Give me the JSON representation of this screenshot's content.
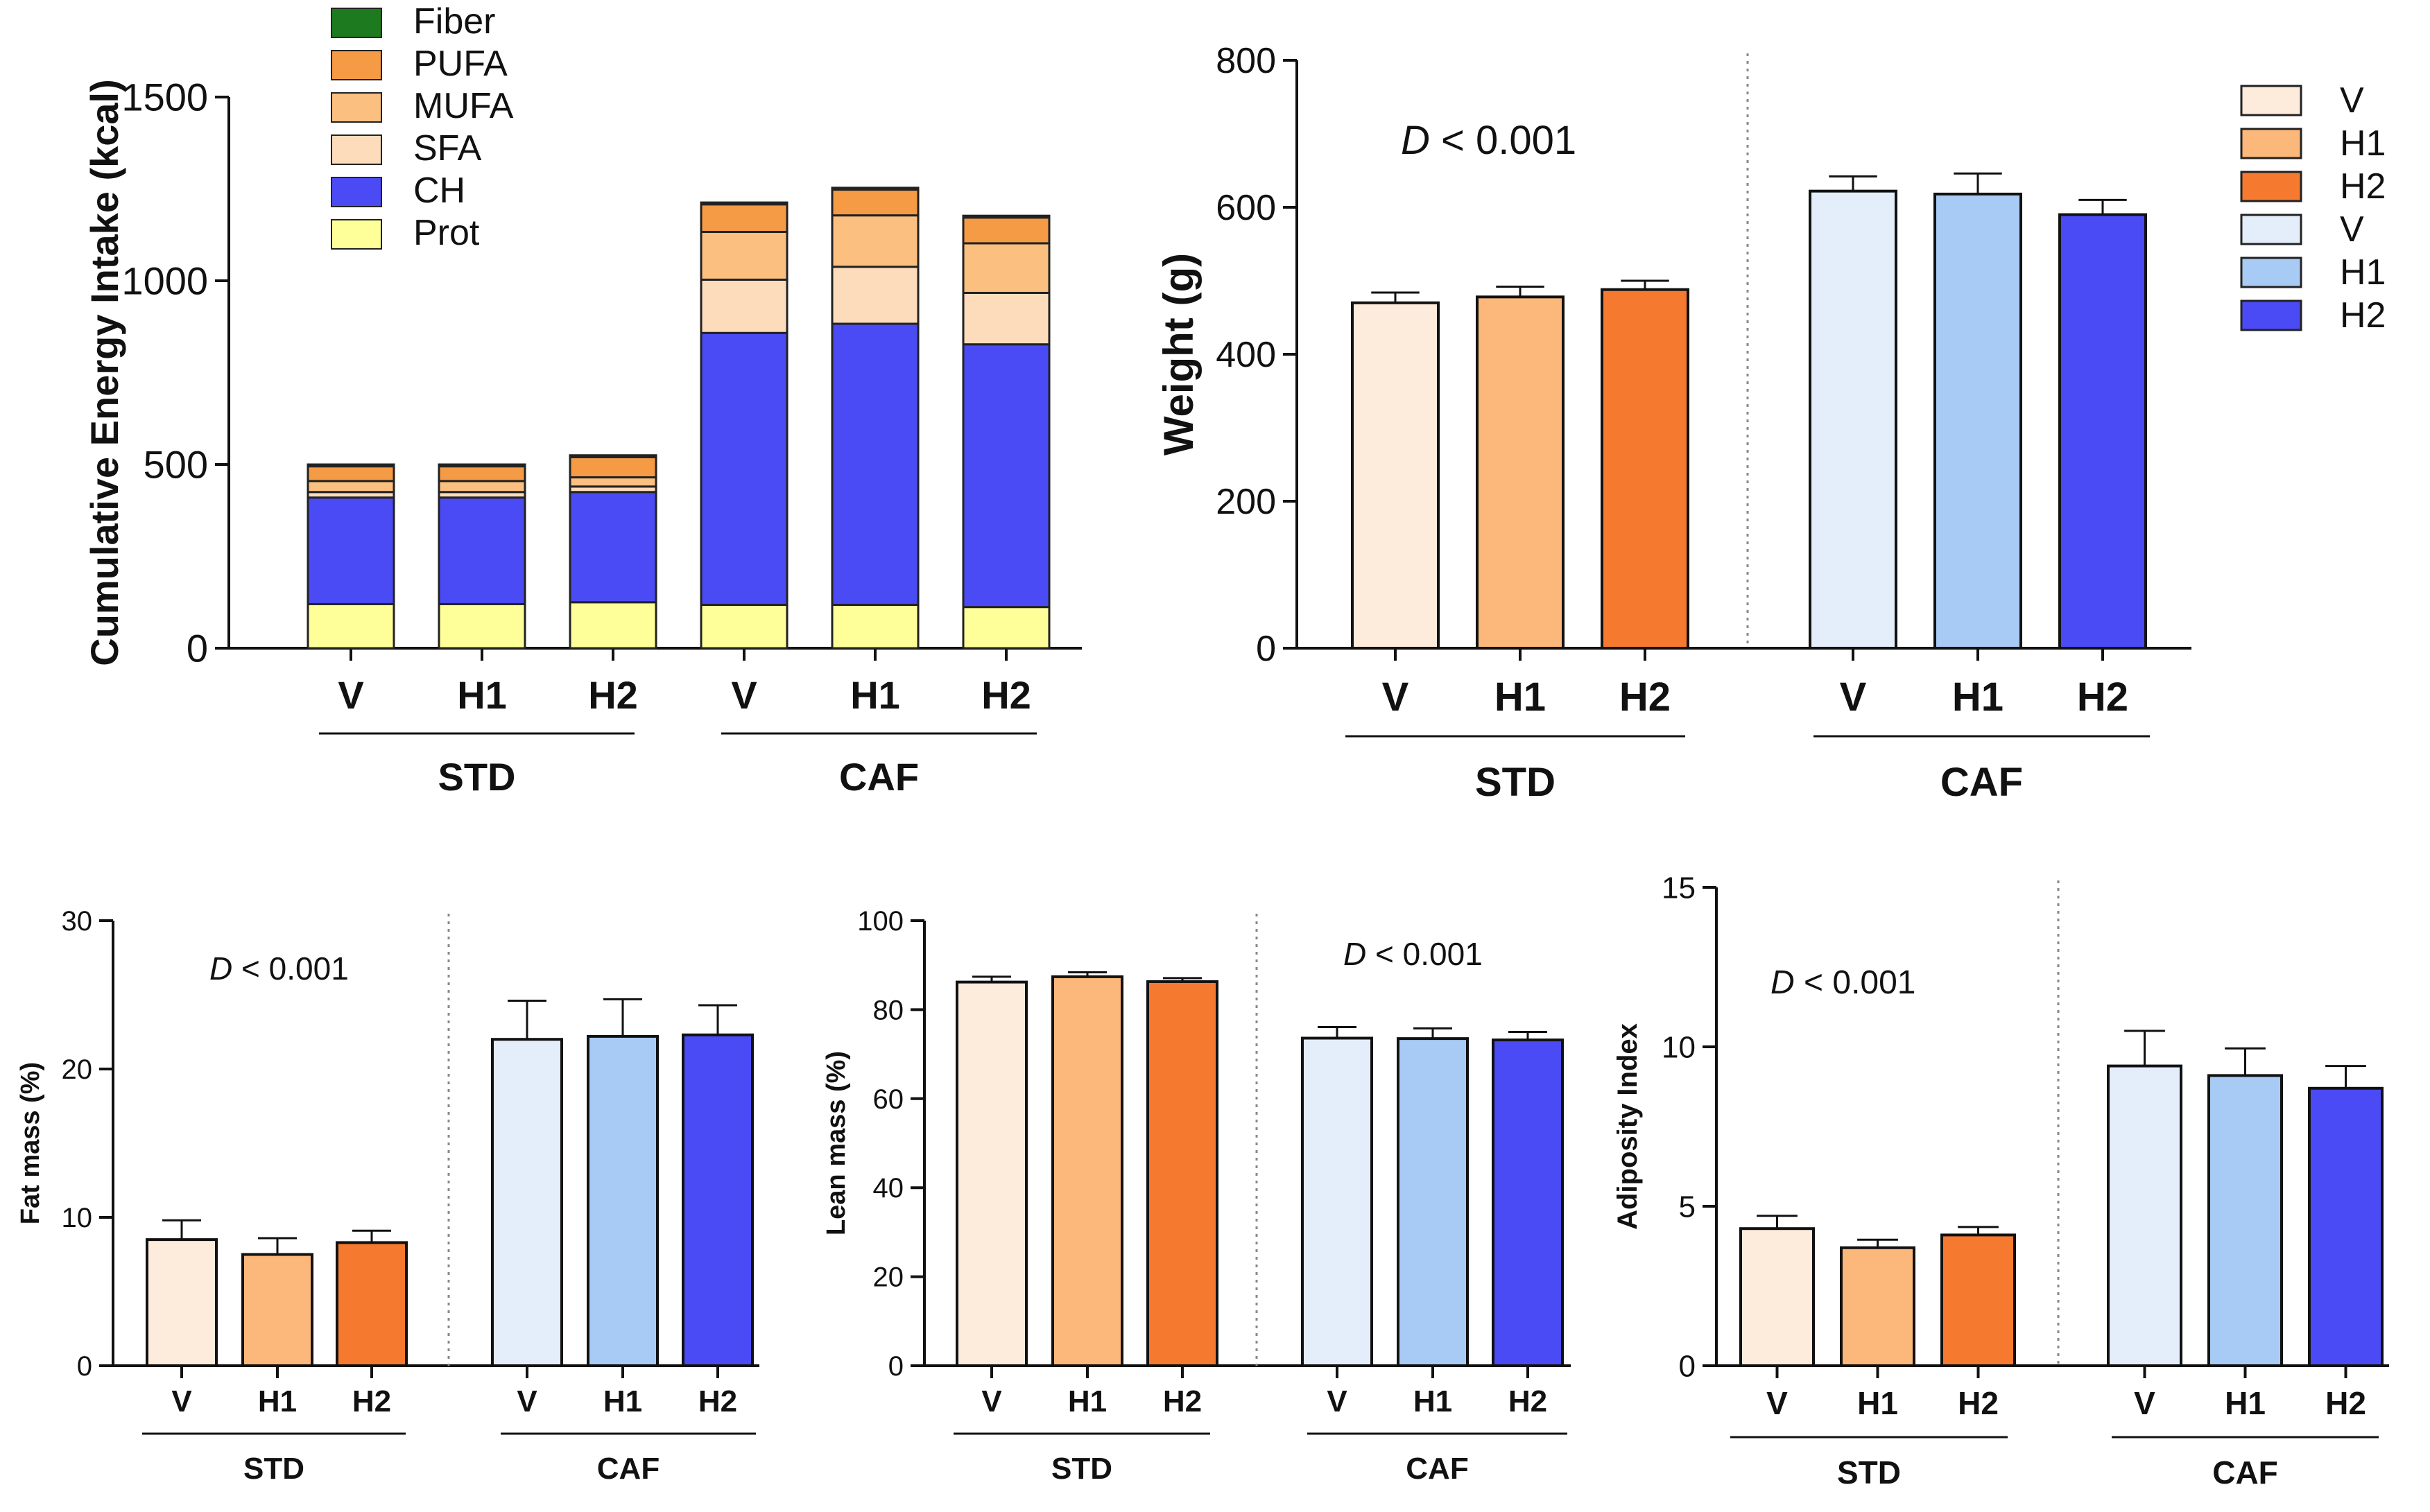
{
  "chart_data": [
    {
      "id": "energy",
      "type": "stacked_bar",
      "ylabel": "Cumulative Energy Intake  (kcal)",
      "ylim": [
        0,
        1500
      ],
      "yticks": [
        0,
        500,
        1000,
        1500
      ],
      "categories": [
        "V",
        "H1",
        "H2",
        "V",
        "H1",
        "H2"
      ],
      "groups": [
        {
          "label": "STD",
          "from": 0,
          "to": 2
        },
        {
          "label": "CAF",
          "from": 3,
          "to": 5
        }
      ],
      "legend": [
        "Fiber",
        "PUFA",
        "MUFA",
        "SFA",
        "CH",
        "Prot"
      ],
      "series": [
        {
          "name": "Prot",
          "color": "#FFFF99",
          "values": [
            120,
            120,
            125,
            118,
            118,
            112
          ]
        },
        {
          "name": "CH",
          "color": "#4B4BF5",
          "values": [
            290,
            290,
            300,
            740,
            765,
            715
          ]
        },
        {
          "name": "SFA",
          "color": "#FDDCBC",
          "values": [
            15,
            15,
            15,
            145,
            155,
            140
          ]
        },
        {
          "name": "MUFA",
          "color": "#FBBF80",
          "values": [
            30,
            30,
            25,
            130,
            140,
            135
          ]
        },
        {
          "name": "PUFA",
          "color": "#F59A45",
          "values": [
            40,
            40,
            55,
            75,
            70,
            70
          ]
        },
        {
          "name": "Fiber",
          "color": "#1E7A1E",
          "values": [
            5,
            5,
            5,
            5,
            5,
            5
          ]
        }
      ]
    },
    {
      "id": "weight",
      "type": "bar",
      "ylabel": "Weight (g)",
      "ylim": [
        0,
        800
      ],
      "yticks": [
        0,
        200,
        400,
        600,
        800
      ],
      "categories": [
        "V",
        "H1",
        "H2",
        "V",
        "H1",
        "H2"
      ],
      "values": [
        470,
        478,
        488,
        622,
        618,
        590
      ],
      "errors": [
        14,
        14,
        12,
        20,
        28,
        20
      ],
      "colors": [
        "#FDEBDC",
        "#FBB87A",
        "#F57A30",
        "#E3EEFA",
        "#A8CBF5",
        "#4B4BF5"
      ],
      "groups": [
        {
          "label": "STD",
          "from": 0,
          "to": 2
        },
        {
          "label": "CAF",
          "from": 3,
          "to": 5
        }
      ],
      "annotation_italic": "D",
      "annotation_rest": " < 0.001",
      "legend": [
        {
          "label": "V",
          "color": "#FDEBDC"
        },
        {
          "label": "H1",
          "color": "#FBB87A"
        },
        {
          "label": "H2",
          "color": "#F57A30"
        },
        {
          "label": "V",
          "color": "#E3EEFA"
        },
        {
          "label": "H1",
          "color": "#A8CBF5"
        },
        {
          "label": "H2",
          "color": "#4B4BF5"
        }
      ]
    },
    {
      "id": "fat",
      "type": "bar",
      "ylabel": "Fat mass (%)",
      "ylim": [
        0,
        30
      ],
      "yticks": [
        0,
        10,
        20,
        30
      ],
      "categories": [
        "V",
        "H1",
        "H2",
        "V",
        "H1",
        "H2"
      ],
      "values": [
        8.5,
        7.5,
        8.3,
        22.0,
        22.2,
        22.3
      ],
      "errors": [
        1.3,
        1.1,
        0.8,
        2.6,
        2.5,
        2.0
      ],
      "colors": [
        "#FDEBDC",
        "#FBB87A",
        "#F57A30",
        "#E3EEFA",
        "#A8CBF5",
        "#4B4BF5"
      ],
      "groups": [
        {
          "label": "STD",
          "from": 0,
          "to": 2
        },
        {
          "label": "CAF",
          "from": 3,
          "to": 5
        }
      ],
      "annotation_italic": "D",
      "annotation_rest": " < 0.001"
    },
    {
      "id": "lean",
      "type": "bar",
      "ylabel": "Lean mass (%)",
      "ylim": [
        0,
        100
      ],
      "yticks": [
        0,
        20,
        40,
        60,
        80,
        100
      ],
      "categories": [
        "V",
        "H1",
        "H2",
        "V",
        "H1",
        "H2"
      ],
      "values": [
        86.2,
        87.4,
        86.3,
        73.6,
        73.5,
        73.2
      ],
      "errors": [
        1.2,
        1.0,
        0.8,
        2.5,
        2.3,
        1.8
      ],
      "colors": [
        "#FDEBDC",
        "#FBB87A",
        "#F57A30",
        "#E3EEFA",
        "#A8CBF5",
        "#4B4BF5"
      ],
      "groups": [
        {
          "label": "STD",
          "from": 0,
          "to": 2
        },
        {
          "label": "CAF",
          "from": 3,
          "to": 5
        }
      ],
      "annotation_italic": "D",
      "annotation_rest": " < 0.001"
    },
    {
      "id": "adiposity",
      "type": "bar",
      "ylabel": "Adiposity  Index",
      "ylim": [
        0,
        15
      ],
      "yticks": [
        0,
        5,
        10,
        15
      ],
      "categories": [
        "V",
        "H1",
        "H2",
        "V",
        "H1",
        "H2"
      ],
      "values": [
        4.3,
        3.7,
        4.1,
        9.4,
        9.1,
        8.7
      ],
      "errors": [
        0.4,
        0.25,
        0.25,
        1.1,
        0.85,
        0.7
      ],
      "colors": [
        "#FDEBDC",
        "#FBB87A",
        "#F57A30",
        "#E3EEFA",
        "#A8CBF5",
        "#4B4BF5"
      ],
      "groups": [
        {
          "label": "STD",
          "from": 0,
          "to": 2
        },
        {
          "label": "CAF",
          "from": 3,
          "to": 5
        }
      ],
      "annotation_italic": "D",
      "annotation_rest": " < 0.001"
    }
  ]
}
